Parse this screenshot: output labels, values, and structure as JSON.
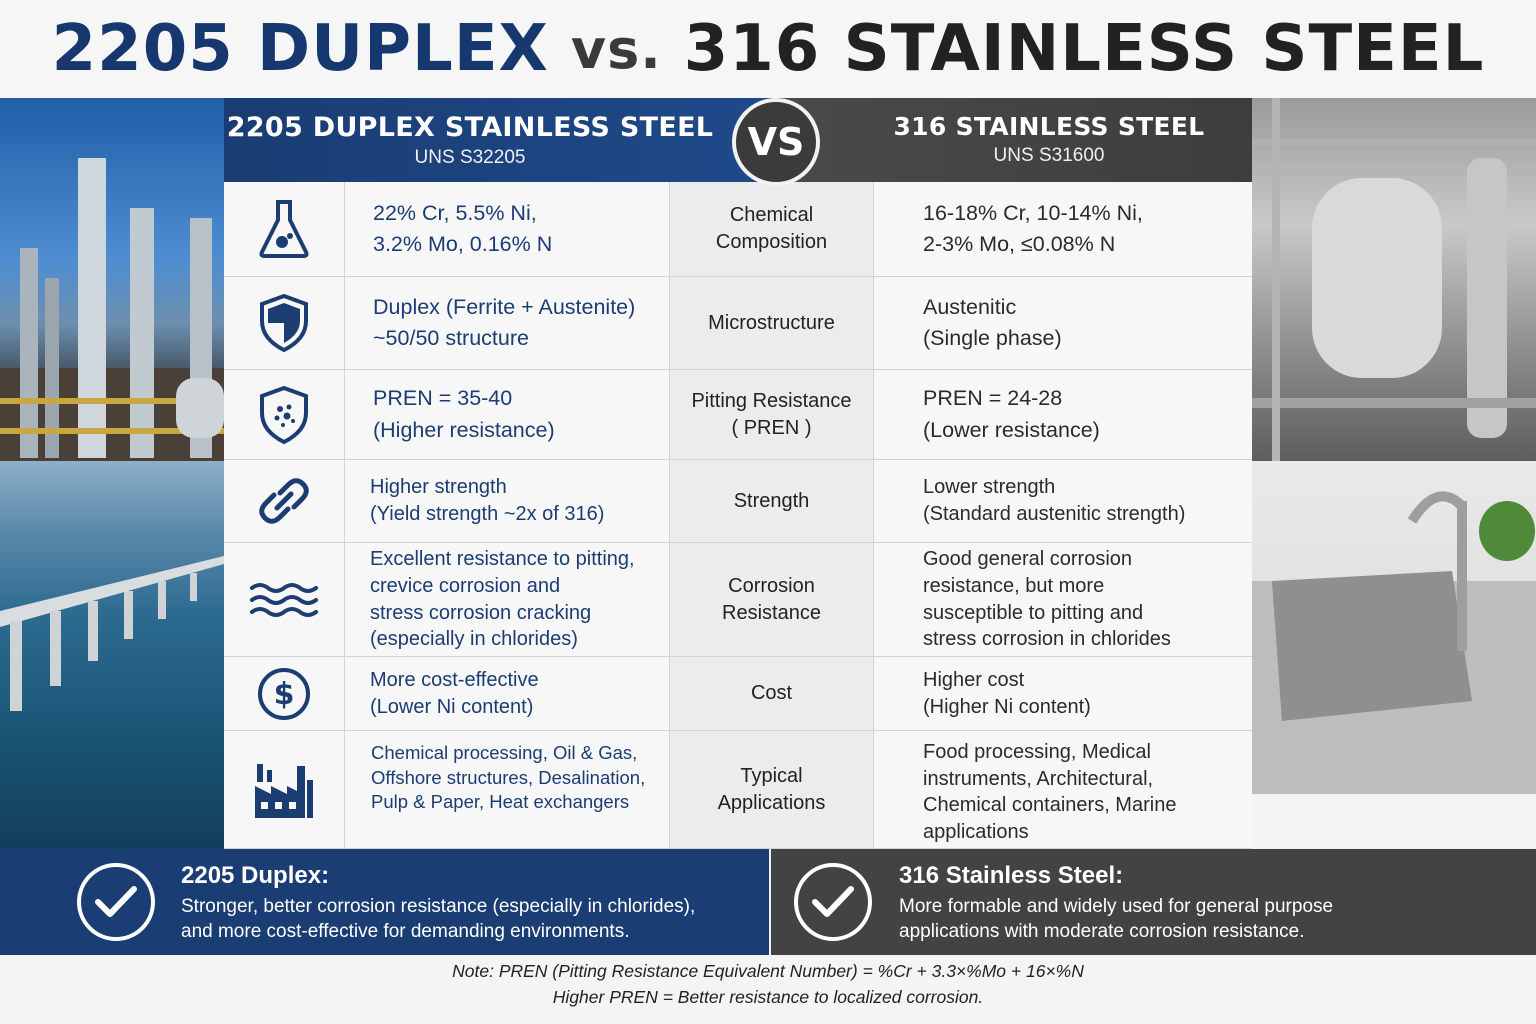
{
  "title": {
    "left": "2205 DUPLEX",
    "vs": "vs.",
    "right": "316 STAINLESS STEEL"
  },
  "header": {
    "left_title": "2205 DUPLEX STAINLESS STEEL",
    "left_uns": "UNS S32205",
    "vs_badge": "VS",
    "right_title": "316 STAINLESS STEEL",
    "right_uns": "UNS S31600"
  },
  "rows": [
    {
      "icon": "flask-icon",
      "left": "22% Cr, 5.5% Ni,\n3.2% Mo, 0.16% N",
      "property": "Chemical\nComposition",
      "right": "16-18% Cr, 10-14% Ni,\n2-3% Mo, ≤0.08% N"
    },
    {
      "icon": "shield-icon",
      "left": "Duplex (Ferrite + Austenite)\n~50/50 structure",
      "property": "Microstructure",
      "right": "Austenitic\n(Single phase)"
    },
    {
      "icon": "shield-dots-icon",
      "left": "PREN = 35-40\n(Higher resistance)",
      "property": "Pitting Resistance\n( PREN )",
      "right": "PREN = 24-28\n(Lower resistance)"
    },
    {
      "icon": "chain-link-icon",
      "left": "Higher strength\n(Yield strength ~2x of 316)",
      "property": "Strength",
      "right": "Lower strength\n(Standard austenitic strength)"
    },
    {
      "icon": "waves-icon",
      "left": "Excellent resistance to pitting,\ncrevice corrosion and\nstress corrosion cracking\n(especially in chlorides)",
      "property": "Corrosion\nResistance",
      "right": "Good general corrosion\nresistance, but more\nsusceptible to pitting and\nstress corrosion in chlorides"
    },
    {
      "icon": "dollar-icon",
      "left": "More cost-effective\n(Lower Ni content)",
      "property": "Cost",
      "right": "Higher cost\n(Higher Ni content)"
    },
    {
      "icon": "factory-icon",
      "left": "Chemical processing, Oil & Gas,\nOffshore structures, Desalination,\nPulp & Paper, Heat exchangers",
      "property": "Typical\nApplications",
      "right": "Food processing, Medical\ninstruments, Architectural,\nChemical containers, Marine\napplications"
    }
  ],
  "summary": {
    "left_title": "2205 Duplex:",
    "left_text": "Stronger, better corrosion resistance (especially in chlorides),\nand more cost-effective for demanding environments.",
    "right_title": "316 Stainless Steel:",
    "right_text": "More formable and widely used for general purpose\napplications with moderate corrosion resistance."
  },
  "note": {
    "label": "Note:",
    "line1": " PREN (Pitting Resistance Equivalent Number) = %Cr + 3.3×%Mo + 16×%N",
    "line2": "Higher PREN = Better resistance to localized corrosion."
  },
  "colors": {
    "duplex_blue": "#1a3d74",
    "steel_gray": "#434343"
  }
}
